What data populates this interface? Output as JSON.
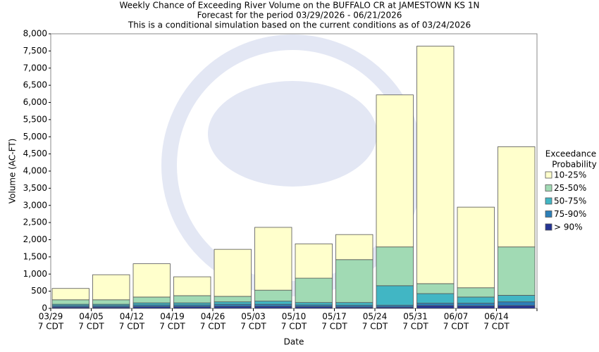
{
  "chart_data": {
    "type": "stacked_bar",
    "title": [
      "Weekly Chance of Exceeding River Volume on the BUFFALO CR at JAMESTOWN KS 1N",
      "Forecast for the period 03/29/2026 - 06/21/2026",
      "This is a conditional simulation based on the current conditions as of 03/24/2026"
    ],
    "x_label": "Date",
    "y_label": "Volume (AC-FT)",
    "categories": [
      [
        "03/29",
        "7 CDT"
      ],
      [
        "04/05",
        "7 CDT"
      ],
      [
        "04/12",
        "7 CDT"
      ],
      [
        "04/19",
        "7 CDT"
      ],
      [
        "04/26",
        "7 CDT"
      ],
      [
        "05/03",
        "7 CDT"
      ],
      [
        "05/10",
        "7 CDT"
      ],
      [
        "05/17",
        "7 CDT"
      ],
      [
        "05/24",
        "7 CDT"
      ],
      [
        "05/31",
        "7 CDT"
      ],
      [
        "06/07",
        "7 CDT"
      ],
      [
        "06/14",
        "7 CDT"
      ]
    ],
    "legend_title": [
      "Exceedance",
      "Probability"
    ],
    "series": [
      {
        "name": "10-25%",
        "color": "#ffffcc",
        "values": [
          330,
          730,
          970,
          550,
          1370,
          1830,
          1000,
          730,
          4430,
          6920,
          2350,
          2920
        ]
      },
      {
        "name": "25-50%",
        "color": "#a1dab4",
        "values": [
          130,
          130,
          170,
          210,
          160,
          320,
          710,
          1250,
          1130,
          290,
          270,
          1410
        ]
      },
      {
        "name": "50-75%",
        "color": "#41b6c4",
        "values": [
          40,
          40,
          60,
          60,
          70,
          90,
          70,
          80,
          570,
          280,
          180,
          190
        ]
      },
      {
        "name": "75-90%",
        "color": "#2c7fb8",
        "values": [
          40,
          40,
          50,
          50,
          60,
          60,
          50,
          50,
          50,
          70,
          80,
          110
        ]
      },
      {
        "name": "> 90%",
        "color": "#253494",
        "values": [
          40,
          40,
          50,
          50,
          60,
          60,
          50,
          40,
          40,
          80,
          70,
          80
        ]
      }
    ],
    "ylim": [
      0,
      8000
    ],
    "yticks": [
      0,
      500,
      {
        "value": 1000,
        "label": "1,000"
      },
      {
        "value": 1500,
        "label": "1,500"
      },
      {
        "value": 2000,
        "label": "2,000"
      },
      {
        "value": 2500,
        "label": "2,500"
      },
      {
        "value": 3000,
        "label": "3,000"
      },
      {
        "value": 3500,
        "label": "3,500"
      },
      {
        "value": 4000,
        "label": "4,000"
      },
      {
        "value": 4500,
        "label": "4,500"
      },
      {
        "value": 5000,
        "label": "5,000"
      },
      {
        "value": 5500,
        "label": "5,500"
      },
      {
        "value": 6000,
        "label": "6,000"
      },
      {
        "value": 6500,
        "label": "6,500"
      },
      {
        "value": 7000,
        "label": "7,000"
      },
      {
        "value": 7500,
        "label": "7,500"
      },
      {
        "value": 8000,
        "label": "8,000"
      }
    ],
    "grid": false
  }
}
